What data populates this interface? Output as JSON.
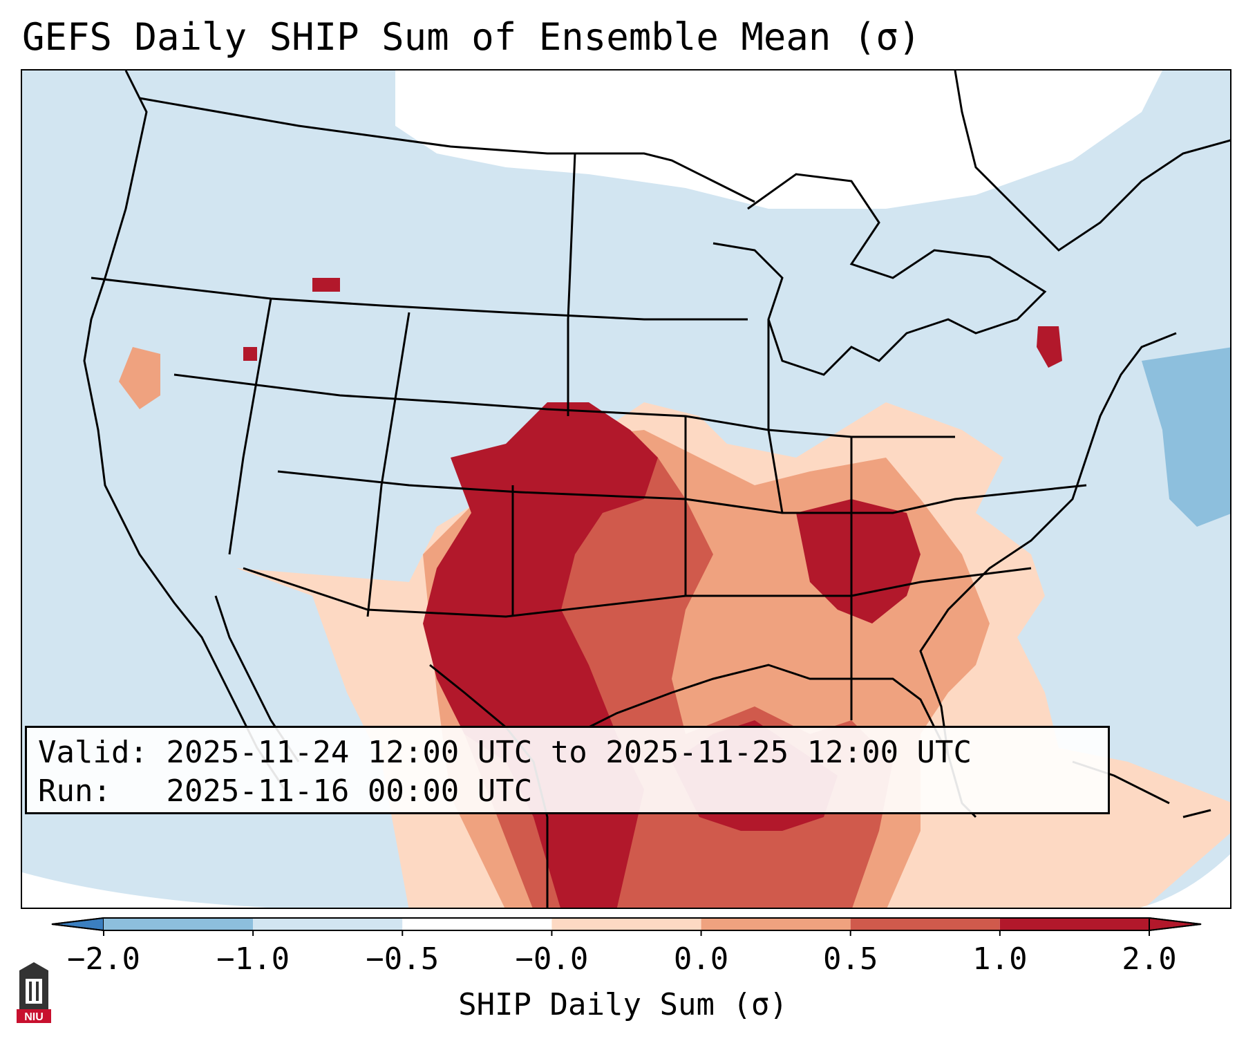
{
  "title": "GEFS Daily SHIP Sum of Ensemble Mean (σ)",
  "info": {
    "valid_label": "Valid:",
    "valid_value": "2025-11-24 12:00 UTC to 2025-11-25 12:00 UTC",
    "run_label": "Run:",
    "run_value": "2025-11-16 00:00 UTC"
  },
  "colorbar": {
    "title": "SHIP Daily Sum (σ)",
    "ticks": [
      "−2.0",
      "−1.0",
      "−0.5",
      "−0.0",
      "0.0",
      "0.5",
      "1.0",
      "2.0"
    ],
    "colors": [
      "#3b7fc0",
      "#8dbfdd",
      "#d2e5f1",
      "#ffffff",
      "#fdd9c3",
      "#efa27f",
      "#d05a4c",
      "#b2182b"
    ]
  },
  "map_colors": {
    "ocean": "#d2e5f1",
    "white": "#ffffff",
    "light_red": "#fdd9c3",
    "medium_red": "#efa27f",
    "red": "#d05a4c",
    "dark_red": "#b2182b",
    "blue": "#8dbfdd"
  },
  "logo": {
    "text": "NIU"
  }
}
